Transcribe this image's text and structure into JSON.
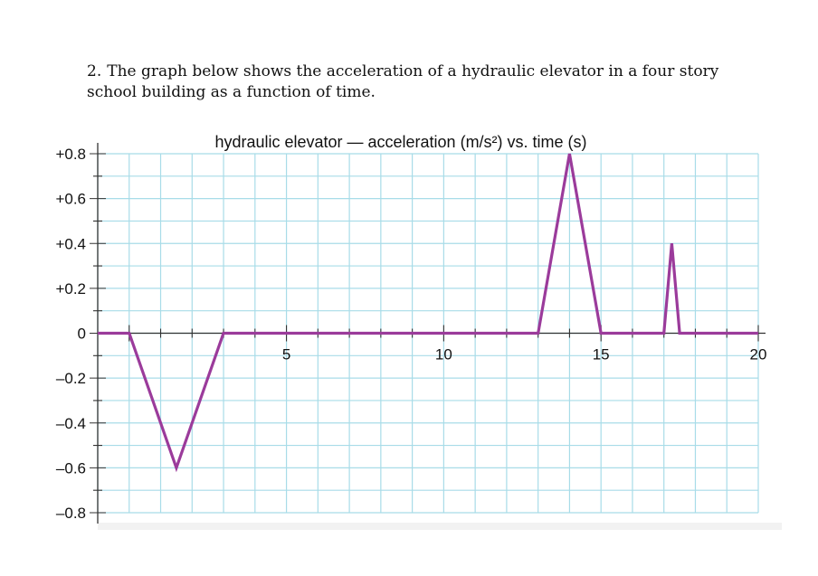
{
  "question": {
    "number": "2.",
    "text": "The graph below shows the acceleration of a hydraulic elevator in a four story school building as a function of time."
  },
  "chart_data": {
    "type": "line",
    "title": "hydraulic elevator — acceleration (m/s²) vs. time (s)",
    "xlabel": "",
    "ylabel": "",
    "xlim": [
      -1,
      20
    ],
    "ylim": [
      -0.8,
      0.8
    ],
    "x_ticks": [
      5,
      10,
      15,
      20
    ],
    "y_ticks": [
      0.8,
      0.6,
      0.4,
      0.2,
      0,
      -0.2,
      -0.4,
      -0.6,
      -0.8
    ],
    "y_tick_labels": [
      "+0.8",
      "+0.6",
      "+0.4",
      "+0.2",
      "0",
      "–0.2",
      "–0.4",
      "–0.6",
      "–0.8"
    ],
    "grid": true,
    "series": [
      {
        "color": "#9b3b9b",
        "x": [
          -1,
          0,
          1.5,
          3,
          13,
          14,
          15,
          17,
          17.25,
          17.5,
          20
        ],
        "y": [
          0,
          0,
          -0.6,
          0,
          0,
          0.8,
          0,
          0,
          0.4,
          0,
          0
        ]
      }
    ],
    "colors": {
      "grid": "#a8dce8",
      "axis": "#333333",
      "line": "#9b3b9b"
    }
  }
}
